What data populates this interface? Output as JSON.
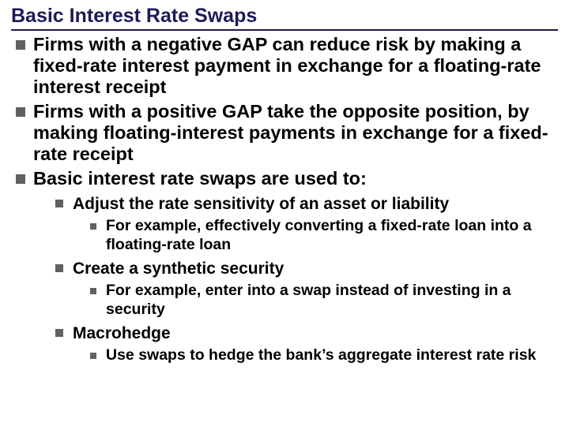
{
  "colors": {
    "title_color": "#1c1a57",
    "underline_color": "#1c1a57",
    "bullet_color": "#5f6062",
    "text_color": "#000000",
    "background": "#ffffff"
  },
  "typography": {
    "font_family": "Arial",
    "title_fontsize_pt": 19,
    "l1_fontsize_pt": 18,
    "l2_fontsize_pt": 16,
    "l3_fontsize_pt": 15,
    "all_bold": true
  },
  "title": "Basic Interest Rate Swaps",
  "bullets": {
    "l1_0": "Firms with a negative GAP can reduce risk by making a fixed-rate interest payment in exchange for a floating-rate interest receipt",
    "l1_1": "Firms with a positive GAP take the opposite position, by making floating-interest payments in exchange for a fixed-rate receipt",
    "l1_2": "Basic interest rate swaps are used to:",
    "l2_0": "Adjust the rate sensitivity of an asset or liability",
    "l3_0": "For example, effectively converting a fixed-rate loan into a floating-rate loan",
    "l2_1": "Create a synthetic security",
    "l3_1": "For example, enter into a swap instead of investing in a security",
    "l2_2": "Macrohedge",
    "l3_2": "Use swaps to hedge the bank’s aggregate interest rate risk"
  }
}
